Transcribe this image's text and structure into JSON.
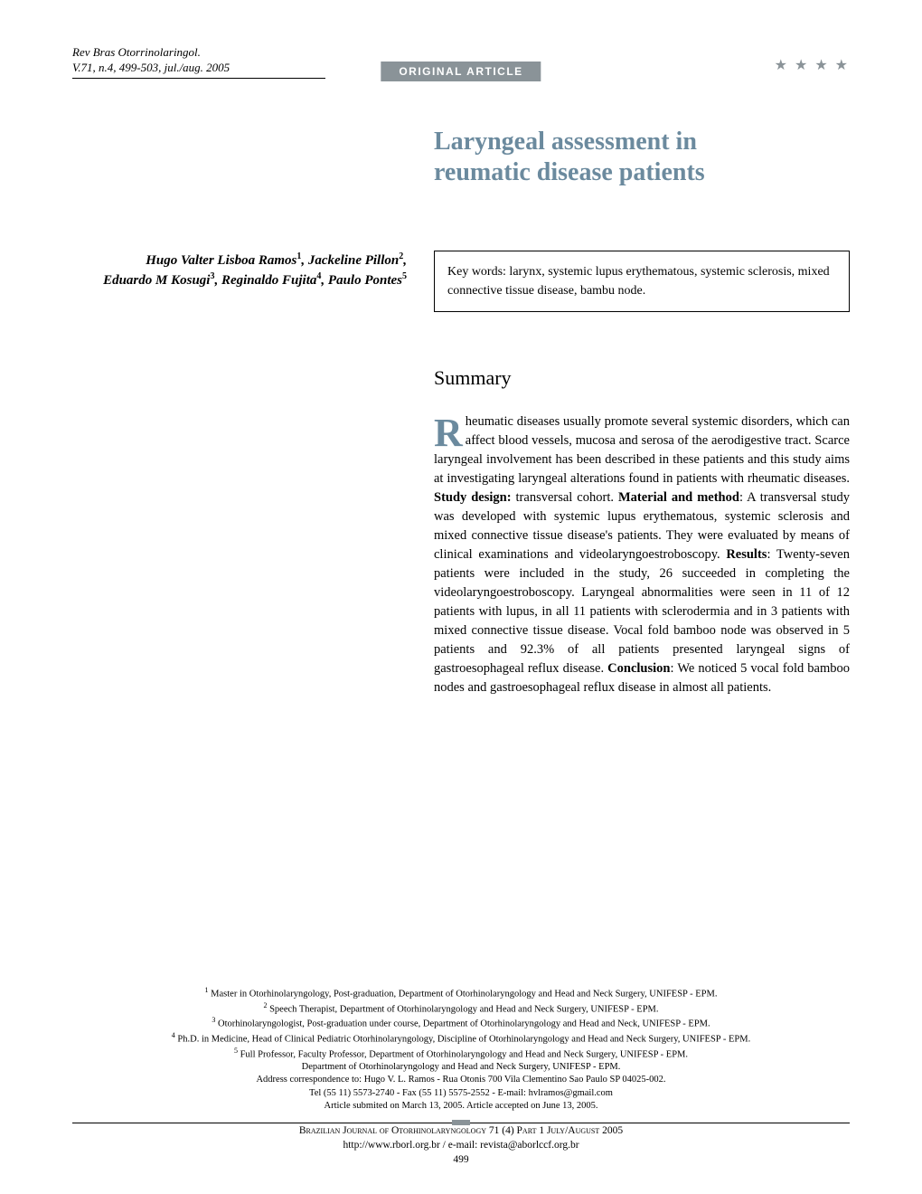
{
  "header": {
    "journal_line1": "Rev Bras Otorrinolaringol.",
    "journal_line2": "V.71, n.4, 499-503, jul./aug. 2005",
    "badge": "ORIGINAL ARTICLE",
    "stars": "★ ★ ★ ★"
  },
  "title": {
    "line1": "Laryngeal assessment in",
    "line2": "reumatic disease patients",
    "color": "#6b8a9e"
  },
  "authors": {
    "line1_pre": "Hugo Valter Lisboa Ramos",
    "sup1": "1",
    "line1_mid": ", Jackeline Pillon",
    "sup2": "2",
    "line1_end": ",",
    "line2_a": "Eduardo M Kosugi",
    "sup3": "3",
    "line2_b": ", Reginaldo Fujita",
    "sup4": "4",
    "line2_c": ", Paulo Pontes",
    "sup5": "5"
  },
  "keywords": "Key words: larynx, systemic lupus erythematous, systemic sclerosis, mixed connective tissue disease, bambu node.",
  "summary": {
    "heading": "Summary",
    "dropcap": "R",
    "body_start": "heumatic diseases usually promote several systemic disorders, which can affect blood vessels, mucosa and serosa of the aerodigestive tract. Scarce laryngeal involvement has been described in these patients and this study aims at investigating laryngeal alterations found in patients with rheumatic diseases. ",
    "b1": "Study design:",
    "t2": " transversal cohort. ",
    "b2": "Material and method",
    "t3": ": A transversal study was developed with systemic lupus erythematous, systemic sclerosis and mixed connective tissue disease's patients. They were evaluated by means of clinical examinations and videolaryngoestroboscopy. ",
    "b3": "Results",
    "t4": ": Twenty-seven patients were included in the study, 26 succeeded in completing the videolaryngoestroboscopy. Laryngeal abnormalities were seen in 11 of 12 patients with lupus, in all 11 patients with sclerodermia and in 3 patients with mixed connective tissue disease. Vocal fold bamboo node was observed in 5 patients and 92.3% of all patients presented laryngeal signs of gastroesophageal reflux disease. ",
    "b4": "Conclusion",
    "t5": ": We noticed 5 vocal fold bamboo nodes and gastroesophageal reflux disease in almost all patients."
  },
  "affiliations": {
    "l1": " Master in Otorhinolaryngology, Post-graduation, Department of Otorhinolaryngology and Head and Neck Surgery, UNIFESP - EPM.",
    "l2": " Speech Therapist, Department of Otorhinolaryngology and Head and Neck Surgery, UNIFESP - EPM.",
    "l3": " Otorhinolaryngologist, Post-graduation under course, Department of Otorhinolaryngology and Head and Neck, UNIFESP - EPM.",
    "l4": " Ph.D. in Medicine, Head of Clinical Pediatric Otorhinolaryngology, Discipline of Otorhinolaryngology and Head and Neck Surgery, UNIFESP - EPM.",
    "l5": " Full Professor, Faculty Professor, Department of Otorhinolaryngology and Head and Neck Surgery, UNIFESP - EPM.",
    "dept": "Department of Otorhinolaryngology and Head and Neck Surgery, UNIFESP - EPM.",
    "addr": "Address correspondence to: Hugo V. L. Ramos - Rua Otonis 700 Vila Clementino Sao Paulo SP 04025-002.",
    "tel": "Tel (55 11) 5573-2740 - Fax (55 11) 5575-2552 - E-mail: hvlramos@gmail.com",
    "dates": "Article submited on March 13, 2005. Article accepted on June 13, 2005."
  },
  "footer": {
    "journal": "Brazilian Journal of Otorhinolaryngology 71 (4) Part 1 July/August 2005",
    "web": "http://www.rborl.org.br  /  e-mail: revista@aborlccf.org.br",
    "page": "499"
  },
  "style": {
    "badge_bg": "#8a9398",
    "text_color": "#000000"
  }
}
